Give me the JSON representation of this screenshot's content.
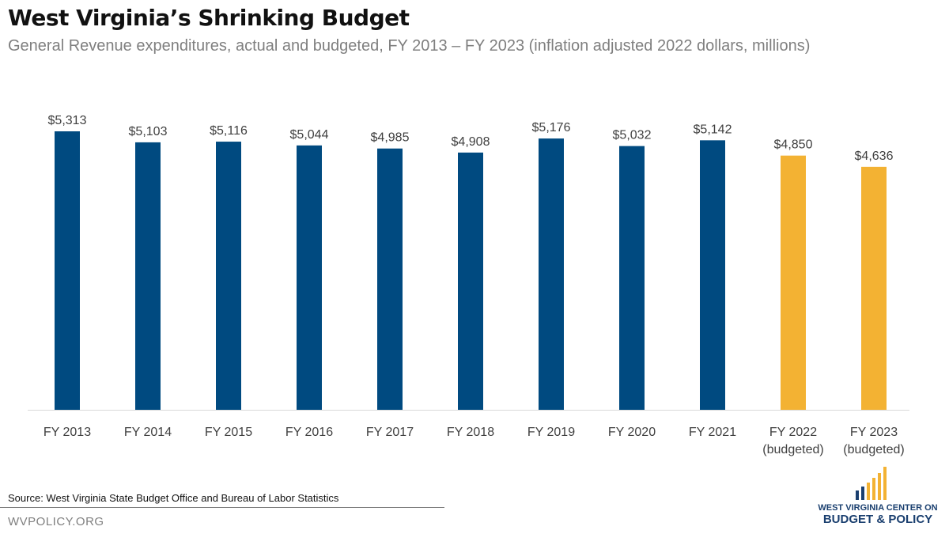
{
  "header": {
    "title": "West Virginia’s Shrinking Budget",
    "subtitle": "General Revenue expenditures, actual and budgeted, FY 2013 – FY 2023 (inflation adjusted 2022 dollars, millions)"
  },
  "footer": {
    "source": "Source: West Virginia State Budget Office and Bureau of Labor Statistics",
    "site": "WVPOLICY.ORG",
    "logo_line1": "WEST VIRGINIA CENTER ON",
    "logo_line2": "BUDGET & POLICY"
  },
  "colors": {
    "actual": "#004a80",
    "budgeted": "#f3b233",
    "logo_blue": "#1a3f6f",
    "logo_gold": "#f3b233"
  },
  "chart_data": {
    "type": "bar",
    "title": "West Virginia’s Shrinking Budget",
    "subtitle": "General Revenue expenditures, actual and budgeted, FY 2013 – FY 2023 (inflation adjusted 2022 dollars, millions)",
    "categories": [
      [
        "FY 2013"
      ],
      [
        "FY 2014"
      ],
      [
        "FY 2015"
      ],
      [
        "FY 2016"
      ],
      [
        "FY 2017"
      ],
      [
        "FY 2018"
      ],
      [
        "FY 2019"
      ],
      [
        "FY 2020"
      ],
      [
        "FY 2021"
      ],
      [
        "FY 2022",
        "(budgeted)"
      ],
      [
        "FY 2023",
        "(budgeted)"
      ]
    ],
    "values": [
      5313,
      5103,
      5116,
      5044,
      4985,
      4908,
      5176,
      5032,
      5142,
      4850,
      4636
    ],
    "labels": [
      "$5,313",
      "$5,103",
      "$5,116",
      "$5,044",
      "$4,985",
      "$4,908",
      "$5,176",
      "$5,032",
      "$5,142",
      "$4,850",
      "$4,636"
    ],
    "status": [
      "actual",
      "actual",
      "actual",
      "actual",
      "actual",
      "actual",
      "actual",
      "actual",
      "actual",
      "budgeted",
      "budgeted"
    ],
    "ylim": [
      0,
      5313
    ],
    "xlabel": "",
    "ylabel": "",
    "grid": false,
    "legend": "none"
  }
}
